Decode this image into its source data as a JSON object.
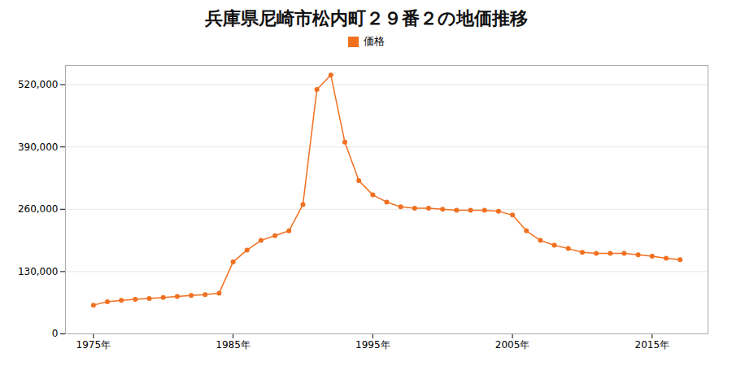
{
  "chart_data": {
    "type": "line",
    "title": "兵庫県尼崎市松内町２９番２の地価推移",
    "x": [
      1975,
      1976,
      1977,
      1978,
      1979,
      1980,
      1981,
      1982,
      1983,
      1984,
      1985,
      1986,
      1987,
      1988,
      1989,
      1990,
      1991,
      1992,
      1993,
      1994,
      1995,
      1996,
      1997,
      1998,
      1999,
      2000,
      2001,
      2002,
      2003,
      2004,
      2005,
      2006,
      2007,
      2008,
      2009,
      2010,
      2011,
      2012,
      2013,
      2014,
      2015,
      2016,
      2017
    ],
    "series": [
      {
        "name": "価格",
        "color": "#F07020",
        "marker": "circle",
        "values": [
          60000,
          67000,
          70000,
          72000,
          74000,
          76000,
          78000,
          80000,
          82000,
          85000,
          150000,
          175000,
          195000,
          205000,
          215000,
          270000,
          510000,
          540000,
          400000,
          320000,
          290000,
          275000,
          265000,
          262000,
          262000,
          260000,
          258000,
          258000,
          258000,
          256000,
          248000,
          215000,
          195000,
          185000,
          178000,
          170000,
          168000,
          168000,
          168000,
          165000,
          162000,
          158000,
          155000
        ]
      }
    ],
    "xlim": [
      1973,
      2019
    ],
    "xticks": [
      {
        "value": 1975,
        "label": "1975年"
      },
      {
        "value": 1985,
        "label": "1985年"
      },
      {
        "value": 1995,
        "label": "1995年"
      },
      {
        "value": 2005,
        "label": "2005年"
      },
      {
        "value": 2015,
        "label": "2015年"
      }
    ],
    "ylim": [
      0,
      560000
    ],
    "yticks": [
      0,
      {
        "value": 130000,
        "label": "130,000"
      },
      {
        "value": 260000,
        "label": "260,000"
      },
      {
        "value": 390000,
        "label": "390,000"
      },
      {
        "value": 520000,
        "label": "520,000"
      }
    ],
    "grid": "y",
    "legend": "top"
  }
}
